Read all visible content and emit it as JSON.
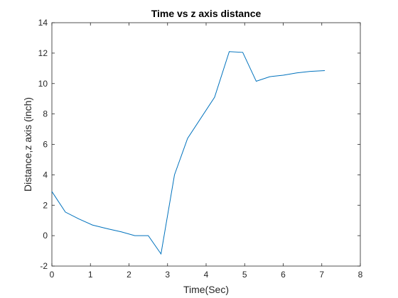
{
  "chart_data": {
    "type": "line",
    "title": "Time vs z axis distance",
    "xlabel": "Time(Sec)",
    "ylabel": "Distance,z axis (inch)",
    "xlim": [
      0,
      8
    ],
    "ylim": [
      -2,
      14
    ],
    "xticks": [
      0,
      1,
      2,
      3,
      4,
      5,
      6,
      7,
      8
    ],
    "yticks": [
      -2,
      0,
      2,
      4,
      6,
      8,
      10,
      12,
      14
    ],
    "xtick_labels": [
      "0",
      "1",
      "2",
      "3",
      "4",
      "5",
      "6",
      "7",
      "8"
    ],
    "ytick_labels": [
      "-2",
      "0",
      "2",
      "4",
      "6",
      "8",
      "10",
      "12",
      "14"
    ],
    "grid": false,
    "legend": "none",
    "series": [
      {
        "color": "#0072bd",
        "x": [
          0,
          0.35,
          0.7,
          1.05,
          1.45,
          1.8,
          2.15,
          2.5,
          2.83,
          3.18,
          3.52,
          4.22,
          4.6,
          4.95,
          5.3,
          5.65,
          6.0,
          6.35,
          6.7,
          7.08
        ],
        "y": [
          2.9,
          1.55,
          1.1,
          0.7,
          0.45,
          0.25,
          0.0,
          0.0,
          -1.2,
          4.0,
          6.4,
          9.1,
          12.1,
          12.05,
          10.15,
          10.45,
          10.55,
          10.7,
          10.8,
          10.85
        ]
      }
    ]
  }
}
